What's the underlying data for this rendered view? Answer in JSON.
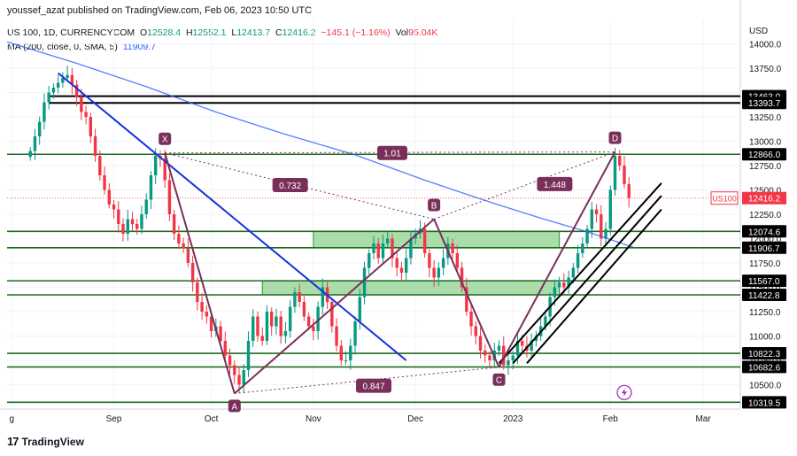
{
  "header": {
    "published": "youssef_azat published on TradingView.com, Feb 06, 2023 10:50 UTC"
  },
  "legend": {
    "symbol": "US 100, 1D, CURRENCYCOM",
    "o_label": "O",
    "o": "12528.4",
    "h_label": "H",
    "h": "12552.1",
    "l_label": "L",
    "l": "12413.7",
    "c_label": "C",
    "c": "12416.2",
    "change": "−145.1 (−1.16%)",
    "vol_label": "Vol",
    "vol": "95.04K",
    "ma_label": "MA (200, close, 0, SMA, 5)",
    "ma_value": "11909.7"
  },
  "footer": {
    "brand": "TradingView"
  },
  "colors": {
    "up": "#089981",
    "down": "#f23645",
    "ma": "#2962ff",
    "trend": "#1432e0",
    "pattern": "#7a2f5a",
    "level": "#1f6b1f",
    "zone": "#8fd18f",
    "resistance": "#000000"
  },
  "chart_data": {
    "type": "candlestick",
    "y_axis_unit": "USD",
    "ylim": [
      10250,
      14250
    ],
    "y_ticks": [
      10500,
      10750,
      11000,
      11250,
      11500,
      11750,
      12000,
      12250,
      12500,
      12750,
      13000,
      13250,
      13500,
      13750,
      14000
    ],
    "x_ticks": [
      {
        "label": "g",
        "i": -4
      },
      {
        "label": "Sep",
        "i": 18
      },
      {
        "label": "Oct",
        "i": 39
      },
      {
        "label": "Nov",
        "i": 61
      },
      {
        "label": "Dec",
        "i": 83
      },
      {
        "label": "2023",
        "i": 104
      },
      {
        "label": "Feb",
        "i": 125
      },
      {
        "label": "Mar",
        "i": 145
      }
    ],
    "x_range": [
      -5,
      153
    ],
    "closes": [
      12900,
      13050,
      13200,
      13400,
      13500,
      13550,
      13600,
      13650,
      13680,
      13580,
      13450,
      13300,
      13250,
      13050,
      12850,
      12650,
      12500,
      12350,
      12300,
      12150,
      12050,
      12200,
      12150,
      12100,
      12250,
      12400,
      12650,
      12850,
      12820,
      12600,
      12250,
      12050,
      11950,
      11900,
      11750,
      11550,
      11350,
      11250,
      11200,
      11050,
      11100,
      10950,
      10800,
      10700,
      10600,
      10500,
      10650,
      10950,
      11200,
      11000,
      10950,
      11250,
      11100,
      11200,
      11000,
      11050,
      11300,
      11450,
      11350,
      11200,
      11100,
      11050,
      11300,
      11500,
      11350,
      11100,
      10900,
      10750,
      10750,
      10900,
      11150,
      11400,
      11700,
      11850,
      11950,
      11800,
      11950,
      12000,
      11800,
      11700,
      11650,
      11800,
      12000,
      12050,
      12100,
      11850,
      11700,
      11600,
      11700,
      11800,
      11950,
      11850,
      11700,
      11500,
      11250,
      11100,
      11000,
      10850,
      10800,
      10750,
      10850,
      10900,
      10700,
      10750,
      10800,
      10950,
      10900,
      10850,
      10950,
      11000,
      11100,
      11200,
      11400,
      11500,
      11550,
      11500,
      11600,
      11700,
      11850,
      11950,
      12100,
      12300,
      12250,
      12000,
      12100,
      12500,
      12850,
      12750,
      12560,
      12416
    ],
    "ma200": {
      "x": [
        -5,
        10,
        25,
        40,
        55,
        70,
        85,
        100,
        110,
        120,
        130
      ],
      "y": [
        14020,
        13800,
        13560,
        13300,
        13070,
        12860,
        12600,
        12360,
        12210,
        12070,
        11910
      ]
    },
    "horizontal_levels": [
      {
        "name": "level-13463",
        "label": "13463.0",
        "value": 13463.0,
        "kind": "resistance"
      },
      {
        "name": "level-13393",
        "label": "13393.7",
        "value": 13393.7,
        "kind": "resistance"
      },
      {
        "name": "level-12866",
        "label": "12866.0",
        "value": 12866.0,
        "kind": "level"
      },
      {
        "name": "level-12074",
        "label": "12074.6",
        "value": 12074.6,
        "kind": "level"
      },
      {
        "name": "level-11906",
        "label": "11906.7",
        "value": 11906.7,
        "kind": "level"
      },
      {
        "name": "level-11567",
        "label": "11567.0",
        "value": 11567.0,
        "kind": "level"
      },
      {
        "name": "level-11422",
        "label": "11422.8",
        "value": 11422.8,
        "kind": "level"
      },
      {
        "name": "level-10822",
        "label": "10822.3",
        "value": 10822.3,
        "kind": "level"
      },
      {
        "name": "level-10682",
        "label": "10682.6",
        "value": 10682.6,
        "kind": "level"
      },
      {
        "name": "level-10319",
        "label": "10319.5",
        "value": 10319.5,
        "kind": "level"
      }
    ],
    "zones": [
      {
        "name": "zone-upper",
        "x0": 61,
        "x1": 114,
        "y0": 11906.7,
        "y1": 12074.6
      },
      {
        "name": "zone-lower",
        "x0": 50,
        "x1": 114,
        "y0": 11422.8,
        "y1": 11567.0
      }
    ],
    "current_price": {
      "symbol": "US100",
      "value": 12416.2,
      "label": "12416.2"
    },
    "pattern_points": [
      {
        "label": "X",
        "i": 29,
        "price": 12880
      },
      {
        "label": "A",
        "i": 44,
        "price": 10410
      },
      {
        "label": "B",
        "i": 87,
        "price": 12200
      },
      {
        "label": "C",
        "i": 101,
        "price": 10680
      },
      {
        "label": "D",
        "i": 126,
        "price": 12890
      }
    ],
    "ratios": [
      {
        "label": "0.732",
        "i": 56,
        "price": 12550
      },
      {
        "label": "1.01",
        "i": 78,
        "price": 12880
      },
      {
        "label": "1.448",
        "i": 113,
        "price": 12560
      },
      {
        "label": "0.847",
        "i": 74,
        "price": 10490
      }
    ],
    "trendline": {
      "i0": 6,
      "p0": 13700,
      "i1": 81,
      "p1": 10750
    },
    "channel": [
      {
        "i0": 101,
        "p0": 10720,
        "i1": 136,
        "p1": 12570
      },
      {
        "i0": 104,
        "p0": 10720,
        "i1": 136,
        "p1": 12440
      },
      {
        "i0": 107,
        "p0": 10720,
        "i1": 136,
        "p1": 12300
      }
    ],
    "event_marker": {
      "i": 128,
      "price": 10420
    }
  }
}
